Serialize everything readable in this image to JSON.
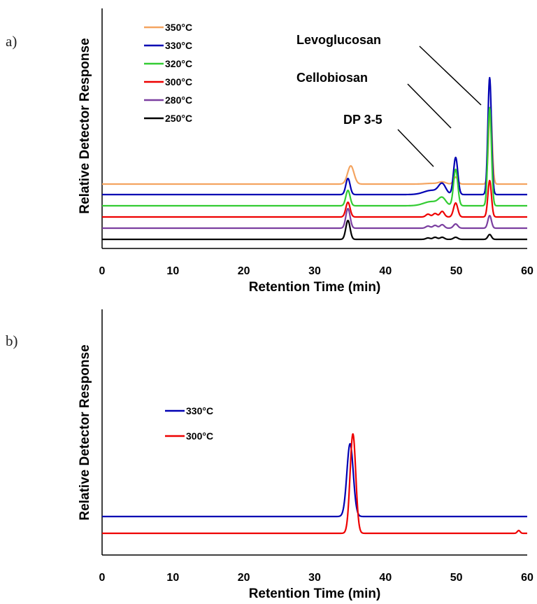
{
  "chart_data": [
    {
      "panel": "a)",
      "type": "line",
      "xlabel": "Retention Time  (min)",
      "ylabel": "Relative Detector Response",
      "xlim": [
        0,
        60
      ],
      "xticks": [
        "0",
        "10",
        "20",
        "30",
        "40",
        "50",
        "60"
      ],
      "grid": false,
      "legend_position": "top-left",
      "annotations": [
        "Levoglucosan",
        "Cellobiosan",
        "DP 3-5"
      ],
      "series": [
        {
          "name": "350°C",
          "color": "#f4a460",
          "baseline": 82,
          "peaks": [
            [
              35.1,
              0.45,
              26
            ],
            [
              46.5,
              0.9,
              1
            ],
            [
              48.0,
              0.5,
              3
            ],
            [
              49.9,
              0.3,
              10
            ],
            [
              54.8,
              0.25,
              110
            ]
          ]
        },
        {
          "name": "330°C",
          "color": "#0000b3",
          "baseline": 67,
          "peaks": [
            [
              34.7,
              0.3,
              23
            ],
            [
              46.5,
              1.1,
              6
            ],
            [
              48.0,
              0.5,
              14
            ],
            [
              49.9,
              0.3,
              53
            ],
            [
              54.7,
              0.25,
              167
            ]
          ]
        },
        {
          "name": "320°C",
          "color": "#33cc33",
          "baseline": 51,
          "peaks": [
            [
              34.7,
              0.3,
              22
            ],
            [
              46.5,
              1.1,
              6
            ],
            [
              48.0,
              0.5,
              10
            ],
            [
              49.9,
              0.3,
              52
            ],
            [
              54.7,
              0.25,
              140
            ]
          ]
        },
        {
          "name": "300°C",
          "color": "#ee0000",
          "baseline": 35,
          "peaks": [
            [
              34.7,
              0.3,
              21
            ],
            [
              46.0,
              0.3,
              4
            ],
            [
              47.0,
              0.3,
              5
            ],
            [
              48.0,
              0.3,
              8
            ],
            [
              49.9,
              0.3,
              20
            ],
            [
              54.7,
              0.25,
              52
            ]
          ]
        },
        {
          "name": "280°C",
          "color": "#7b3fa0",
          "baseline": 19,
          "peaks": [
            [
              34.7,
              0.3,
              28
            ],
            [
              46.0,
              0.3,
              3
            ],
            [
              47.0,
              0.3,
              4
            ],
            [
              48.0,
              0.3,
              5
            ],
            [
              49.9,
              0.3,
              6
            ],
            [
              54.7,
              0.25,
              18
            ]
          ]
        },
        {
          "name": "250°C",
          "color": "#000000",
          "baseline": 3,
          "peaks": [
            [
              34.7,
              0.3,
              27
            ],
            [
              46.0,
              0.3,
              2
            ],
            [
              47.0,
              0.3,
              3
            ],
            [
              48.0,
              0.3,
              3
            ],
            [
              49.9,
              0.3,
              3
            ],
            [
              54.7,
              0.25,
              7
            ]
          ]
        }
      ]
    },
    {
      "panel": "b)",
      "type": "line",
      "xlabel": "Retention Time  (min)",
      "ylabel": "Relative Detector Response",
      "xlim": [
        0,
        60
      ],
      "xticks": [
        "0",
        "10",
        "20",
        "30",
        "40",
        "50",
        "60"
      ],
      "grid": false,
      "legend_position": "center-left",
      "series": [
        {
          "name": "330°C",
          "color": "#0000b3",
          "baseline": 44,
          "peaks": [
            [
              35.0,
              0.45,
              104
            ]
          ]
        },
        {
          "name": "300°C",
          "color": "#ee0000",
          "baseline": 20,
          "peaks": [
            [
              35.4,
              0.4,
              142
            ],
            [
              58.8,
              0.2,
              4
            ]
          ]
        }
      ]
    }
  ]
}
